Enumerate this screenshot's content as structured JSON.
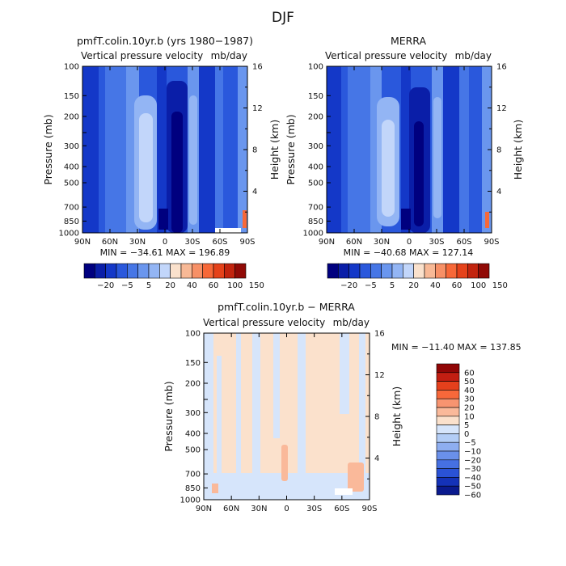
{
  "figure_title": "DJF",
  "chart_data": [
    {
      "type": "heatmap",
      "title": "pmfT.colin.10yr.b (yrs 1980−1987)",
      "subtitle": "Vertical pressure velocity",
      "units": "mb/day",
      "ylabel": "Pressure (mb)",
      "y2label": "Height (km)",
      "x_ticks": [
        "90N",
        "60N",
        "30N",
        "0",
        "30S",
        "60S",
        "90S"
      ],
      "y_ticks": [
        "100",
        "150",
        "200",
        "250",
        "300",
        "400",
        "500",
        "700",
        "850",
        "1000"
      ],
      "y2_ticks": [
        "16",
        "12",
        "8",
        "4"
      ],
      "stats": "MIN = −34.61   MAX = 196.89",
      "min": -34.61,
      "max": 196.89,
      "colorbar_labels": [
        "−20",
        "−5",
        "5",
        "20",
        "40",
        "60",
        "100",
        "150"
      ]
    },
    {
      "type": "heatmap",
      "title": "MERRA",
      "subtitle": "Vertical pressure velocity",
      "units": "mb/day",
      "ylabel": "Pressure (mb)",
      "y2label": "Height (km)",
      "x_ticks": [
        "90N",
        "60N",
        "30N",
        "0",
        "30S",
        "60S",
        "90S"
      ],
      "y_ticks": [
        "100",
        "150",
        "200",
        "250",
        "300",
        "400",
        "500",
        "700",
        "850",
        "1000"
      ],
      "y2_ticks": [
        "16",
        "12",
        "8",
        "4"
      ],
      "stats": "MIN = −40.68   MAX = 127.14",
      "min": -40.68,
      "max": 127.14,
      "colorbar_labels": [
        "−20",
        "−5",
        "5",
        "20",
        "40",
        "60",
        "100",
        "150"
      ]
    },
    {
      "type": "heatmap",
      "title": "pmfT.colin.10yr.b − MERRA",
      "subtitle": "Vertical pressure velocity",
      "units": "mb/day",
      "ylabel": "Pressure (mb)",
      "y2label": "Height (km)",
      "x_ticks": [
        "90N",
        "60N",
        "30N",
        "0",
        "30S",
        "60S",
        "90S"
      ],
      "y_ticks": [
        "100",
        "150",
        "200",
        "250",
        "300",
        "400",
        "500",
        "700",
        "850",
        "1000"
      ],
      "y2_ticks": [
        "16",
        "12",
        "8",
        "4"
      ],
      "stats": "MIN = −11.40   MAX = 137.85",
      "min": -11.4,
      "max": 137.85,
      "colorbar_labels": [
        "60",
        "50",
        "40",
        "30",
        "20",
        "10",
        "5",
        "0",
        "−5",
        "−10",
        "−20",
        "−30",
        "−40",
        "−50",
        "−60"
      ]
    }
  ],
  "colors": {
    "mean_colorbar": [
      "#00007f",
      "#0a1ea8",
      "#1438c8",
      "#2a58dc",
      "#4676e6",
      "#6a96ee",
      "#93b5f4",
      "#c2d6fa",
      "#fae1cc",
      "#f8b996",
      "#f79066",
      "#f76838",
      "#e5421a",
      "#c2240e",
      "#900a06"
    ],
    "diff_colorbar": [
      "#900606",
      "#c21e12",
      "#e5401c",
      "#f7683a",
      "#f79470",
      "#fab99a",
      "#fbe1cc",
      "#d6e5fb",
      "#b3cdf6",
      "#8eaef0",
      "#6a90ea",
      "#4670e2",
      "#2a52d6",
      "#1432b8",
      "#0a1a8e"
    ]
  }
}
